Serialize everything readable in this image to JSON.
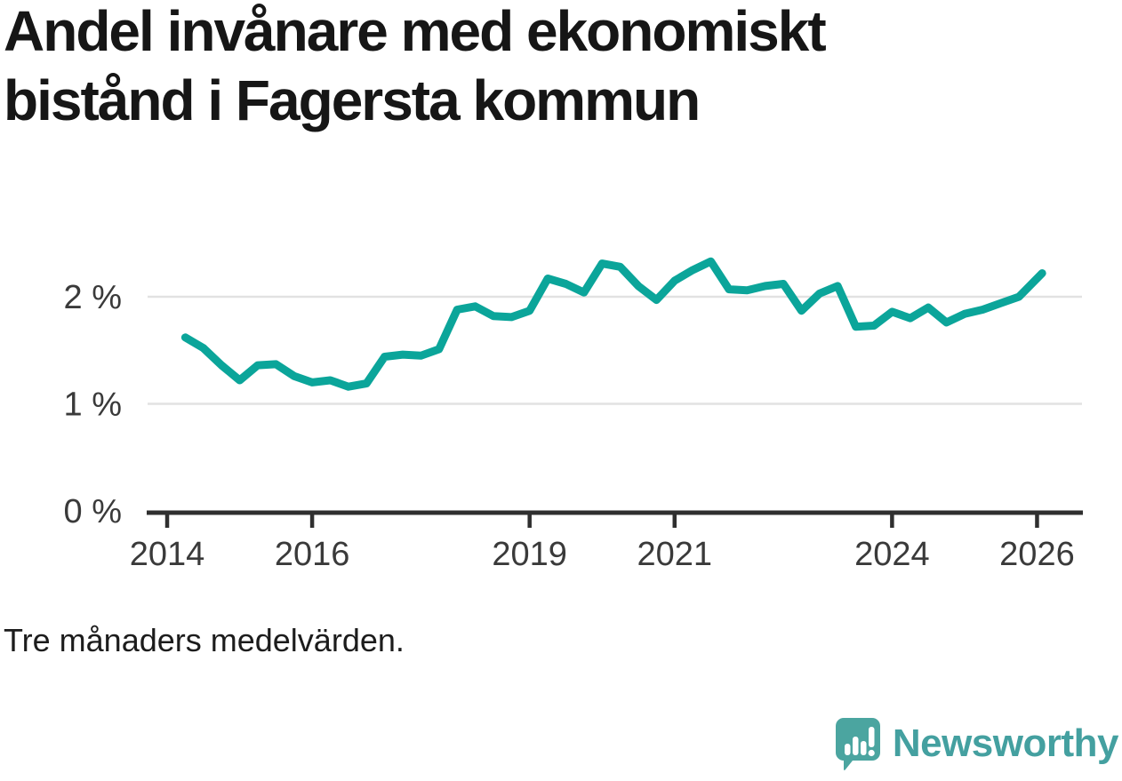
{
  "title": "Andel invånare med ekonomiskt bistånd i Fagersta kommun",
  "footnote": "Tre månaders medelvärden.",
  "brand": {
    "name": "Newsworthy"
  },
  "colors": {
    "line": "#0ba59a",
    "axis": "#2f2f2f",
    "grid": "#e2e2e2",
    "tick_text": "#3a3a3a",
    "title_text": "#161616",
    "brand_teal": "#44a0a0",
    "icon_teal": "#4ba5a0"
  },
  "chart_data": {
    "type": "line",
    "title": "Andel invånare med ekonomiskt bistånd i Fagersta kommun",
    "xlabel": "",
    "ylabel": "",
    "note": "Tre månaders medelvärden.",
    "unit": "%",
    "xlim": [
      2013.73,
      2026.62
    ],
    "ylim": [
      0,
      2.6
    ],
    "grid": "horizontal",
    "legend_position": "none",
    "xticks": [
      {
        "value": 2014,
        "label": "2014"
      },
      {
        "value": 2016,
        "label": "2016"
      },
      {
        "value": 2019,
        "label": "2019"
      },
      {
        "value": 2021,
        "label": "2021"
      },
      {
        "value": 2024,
        "label": "2024"
      },
      {
        "value": 2026,
        "label": "2026"
      }
    ],
    "yticks": [
      {
        "value": 0,
        "label": "0 %"
      },
      {
        "value": 1,
        "label": "1 %"
      },
      {
        "value": 2,
        "label": "2 %"
      }
    ],
    "series": [
      {
        "name": "Andel invånare med ekonomiskt bistånd",
        "x": [
          2014.25,
          2014.5,
          2014.75,
          2015.0,
          2015.25,
          2015.5,
          2015.75,
          2016.0,
          2016.25,
          2016.5,
          2016.75,
          2017.0,
          2017.25,
          2017.5,
          2017.75,
          2018.0,
          2018.25,
          2018.5,
          2018.75,
          2019.0,
          2019.25,
          2019.5,
          2019.75,
          2020.0,
          2020.25,
          2020.5,
          2020.75,
          2021.0,
          2021.25,
          2021.5,
          2021.75,
          2022.0,
          2022.25,
          2022.5,
          2022.75,
          2023.0,
          2023.25,
          2023.5,
          2023.75,
          2024.0,
          2024.25,
          2024.5,
          2024.75,
          2025.0,
          2025.25,
          2025.5,
          2025.75,
          2026.07
        ],
        "y": [
          1.62,
          1.52,
          1.36,
          1.22,
          1.36,
          1.37,
          1.26,
          1.2,
          1.22,
          1.16,
          1.19,
          1.44,
          1.46,
          1.45,
          1.51,
          1.88,
          1.91,
          1.82,
          1.81,
          1.87,
          2.17,
          2.12,
          2.04,
          2.31,
          2.28,
          2.1,
          1.97,
          2.15,
          2.25,
          2.33,
          2.07,
          2.06,
          2.1,
          2.12,
          1.87,
          2.03,
          2.1,
          1.72,
          1.73,
          1.86,
          1.8,
          1.9,
          1.76,
          1.84,
          1.88,
          1.94,
          2.0,
          2.22
        ]
      }
    ]
  }
}
